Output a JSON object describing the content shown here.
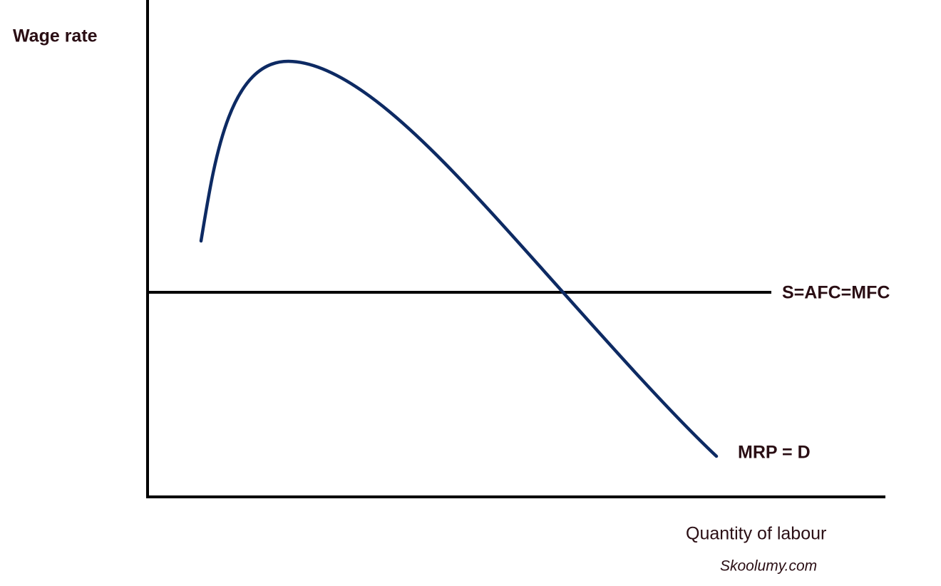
{
  "axes": {
    "y_label": "Wage rate",
    "x_label": "Quantity of labour"
  },
  "curves": {
    "supply": "S=AFC=MFC",
    "demand": "MRP = D"
  },
  "watermark": "Skoolumy.com"
}
